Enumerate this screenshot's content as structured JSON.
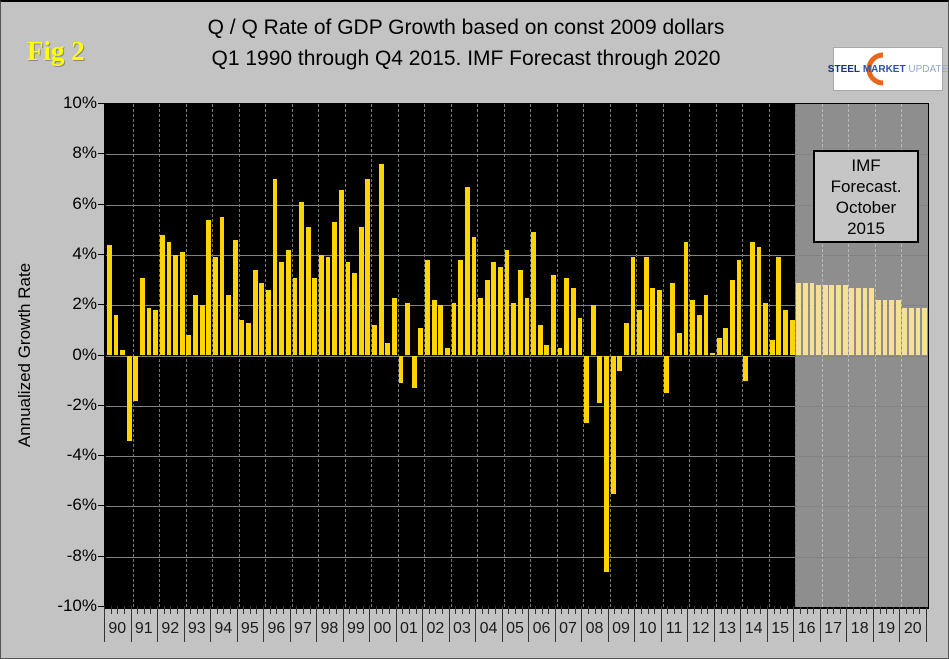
{
  "fig_label": "Fig 2",
  "title": {
    "line1": "Q / Q Rate of GDP Growth based on const 2009 dollars",
    "line2": "Q1 1990 through Q4 2015. IMF Forecast through 2020"
  },
  "logo": {
    "word1": "STEEL",
    "word2": "MARKET",
    "word3": "UPDATE",
    "blue": "#15337f",
    "orange": "#e8671c"
  },
  "forecast_box": {
    "line1": "IMF",
    "line2": "Forecast.",
    "line3": "October",
    "line4": "2015"
  },
  "chart_data": {
    "type": "bar",
    "title": "Q / Q Rate of GDP Growth based on const 2009 dollars — Q1 1990 through Q4 2015. IMF Forecast through 2020",
    "xlabel": "",
    "ylabel": "Annualized Growth Rate",
    "ylim": [
      -10,
      10
    ],
    "ytick_step": 2,
    "ytick_labels": [
      "10%",
      "8%",
      "6%",
      "4%",
      "2%",
      "0%",
      "-2%",
      "-4%",
      "-6%",
      "-8%",
      "-10%"
    ],
    "grid": true,
    "legend_position": "none",
    "plot_bg_historical": "#000000",
    "plot_bg_forecast": "#8e8e8e",
    "bar_color_historical": "#ffd400",
    "bar_color_forecast": "#f5e093",
    "x_unit": "quarter (4 bars per year label)",
    "years": [
      {
        "label": "90",
        "forecast": false,
        "values": [
          4.4,
          1.6,
          0.2,
          -3.4
        ]
      },
      {
        "label": "91",
        "forecast": false,
        "values": [
          -1.8,
          3.1,
          1.9,
          1.8
        ]
      },
      {
        "label": "92",
        "forecast": false,
        "values": [
          4.8,
          4.5,
          4.0,
          4.1
        ]
      },
      {
        "label": "93",
        "forecast": false,
        "values": [
          0.8,
          2.4,
          2.0,
          5.4
        ]
      },
      {
        "label": "94",
        "forecast": false,
        "values": [
          3.9,
          5.5,
          2.4,
          4.6
        ]
      },
      {
        "label": "95",
        "forecast": false,
        "values": [
          1.4,
          1.3,
          3.4,
          2.9
        ]
      },
      {
        "label": "96",
        "forecast": false,
        "values": [
          2.6,
          7.0,
          3.7,
          4.2
        ]
      },
      {
        "label": "97",
        "forecast": false,
        "values": [
          3.1,
          6.1,
          5.1,
          3.1
        ]
      },
      {
        "label": "98",
        "forecast": false,
        "values": [
          4.0,
          3.9,
          5.3,
          6.6
        ]
      },
      {
        "label": "99",
        "forecast": false,
        "values": [
          3.7,
          3.3,
          5.1,
          7.0
        ]
      },
      {
        "label": "00",
        "forecast": false,
        "values": [
          1.2,
          7.6,
          0.5,
          2.3
        ]
      },
      {
        "label": "01",
        "forecast": false,
        "values": [
          -1.1,
          2.1,
          -1.3,
          1.1
        ]
      },
      {
        "label": "02",
        "forecast": false,
        "values": [
          3.8,
          2.2,
          2.0,
          0.3
        ]
      },
      {
        "label": "03",
        "forecast": false,
        "values": [
          2.1,
          3.8,
          6.7,
          4.7
        ]
      },
      {
        "label": "04",
        "forecast": false,
        "values": [
          2.3,
          3.0,
          3.7,
          3.5
        ]
      },
      {
        "label": "05",
        "forecast": false,
        "values": [
          4.2,
          2.1,
          3.4,
          2.3
        ]
      },
      {
        "label": "06",
        "forecast": false,
        "values": [
          4.9,
          1.2,
          0.4,
          3.2
        ]
      },
      {
        "label": "07",
        "forecast": false,
        "values": [
          0.3,
          3.1,
          2.7,
          1.5
        ]
      },
      {
        "label": "08",
        "forecast": false,
        "values": [
          -2.7,
          2.0,
          -1.9,
          -8.6
        ]
      },
      {
        "label": "09",
        "forecast": false,
        "values": [
          -5.5,
          -0.6,
          1.3,
          3.9
        ]
      },
      {
        "label": "10",
        "forecast": false,
        "values": [
          1.8,
          3.9,
          2.7,
          2.6
        ]
      },
      {
        "label": "11",
        "forecast": false,
        "values": [
          -1.5,
          2.9,
          0.9,
          4.5
        ]
      },
      {
        "label": "12",
        "forecast": false,
        "values": [
          2.2,
          1.6,
          2.4,
          0.1
        ]
      },
      {
        "label": "13",
        "forecast": false,
        "values": [
          0.7,
          1.1,
          3.0,
          3.8
        ]
      },
      {
        "label": "14",
        "forecast": false,
        "values": [
          -1.0,
          4.5,
          4.3,
          2.1
        ]
      },
      {
        "label": "15",
        "forecast": false,
        "values": [
          0.6,
          3.9,
          1.8,
          1.4
        ]
      },
      {
        "label": "16",
        "forecast": true,
        "values": [
          2.9,
          2.9,
          2.9,
          2.8
        ]
      },
      {
        "label": "17",
        "forecast": true,
        "values": [
          2.8,
          2.8,
          2.8,
          2.8
        ]
      },
      {
        "label": "18",
        "forecast": true,
        "values": [
          2.7,
          2.7,
          2.7,
          2.7
        ]
      },
      {
        "label": "19",
        "forecast": true,
        "values": [
          2.2,
          2.2,
          2.2,
          2.2
        ]
      },
      {
        "label": "20",
        "forecast": true,
        "values": [
          1.9,
          1.9,
          1.9,
          1.9
        ]
      }
    ]
  }
}
